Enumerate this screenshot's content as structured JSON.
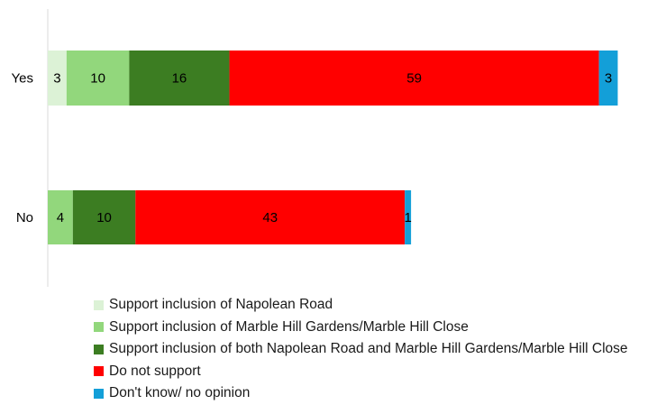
{
  "chart_data": {
    "type": "bar",
    "orientation": "horizontal",
    "stacked": true,
    "categories": [
      "Yes",
      "No"
    ],
    "series": [
      {
        "name": "Support inclusion of Napolean Road",
        "color": "#dcf2d6",
        "values": [
          3,
          0
        ],
        "labels": [
          "3",
          ""
        ]
      },
      {
        "name": "Support inclusion of Marble Hill Gardens/Marble Hill Close",
        "color": "#92d77c",
        "values": [
          10,
          4
        ],
        "labels": [
          "10",
          "4"
        ]
      },
      {
        "name": "Support inclusion of both Napolean Road and Marble Hill Gardens/Marble Hill Close",
        "color": "#3c7d22",
        "values": [
          16,
          10
        ],
        "labels": [
          "16",
          "10"
        ]
      },
      {
        "name": "Do not support",
        "color": "#ff0000",
        "values": [
          59,
          43
        ],
        "labels": [
          "59",
          "43"
        ]
      },
      {
        "name": "Don't know/ no opinion",
        "color": "#139fd8",
        "values": [
          3,
          1
        ],
        "labels": [
          "3",
          "1"
        ]
      }
    ],
    "title": "",
    "xlabel": "",
    "ylabel": "",
    "grid": false,
    "legend_position": "bottom-left"
  }
}
